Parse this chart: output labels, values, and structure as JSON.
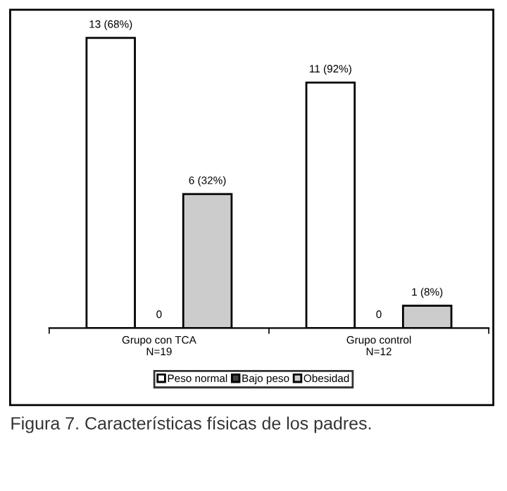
{
  "chart_data": {
    "type": "bar",
    "categories": [
      "Grupo con TCA\nN=19",
      "Grupo control\nN=12"
    ],
    "series": [
      {
        "name": "Peso normal",
        "color": "#ffffff",
        "values": [
          13,
          11
        ],
        "value_labels": [
          "13 (68%)",
          "11 (92%)"
        ]
      },
      {
        "name": "Bajo peso",
        "color": "#404040",
        "values": [
          0,
          0
        ],
        "value_labels": [
          "0",
          "0"
        ]
      },
      {
        "name": "Obesidad",
        "color": "#cccccc",
        "values": [
          6,
          1
        ],
        "value_labels": [
          "6 (32%)",
          "1 (8%)"
        ]
      }
    ],
    "legend": "bottom",
    "grid": false,
    "annotations": [
      "Figura 7. Características físicas de los padres."
    ]
  }
}
